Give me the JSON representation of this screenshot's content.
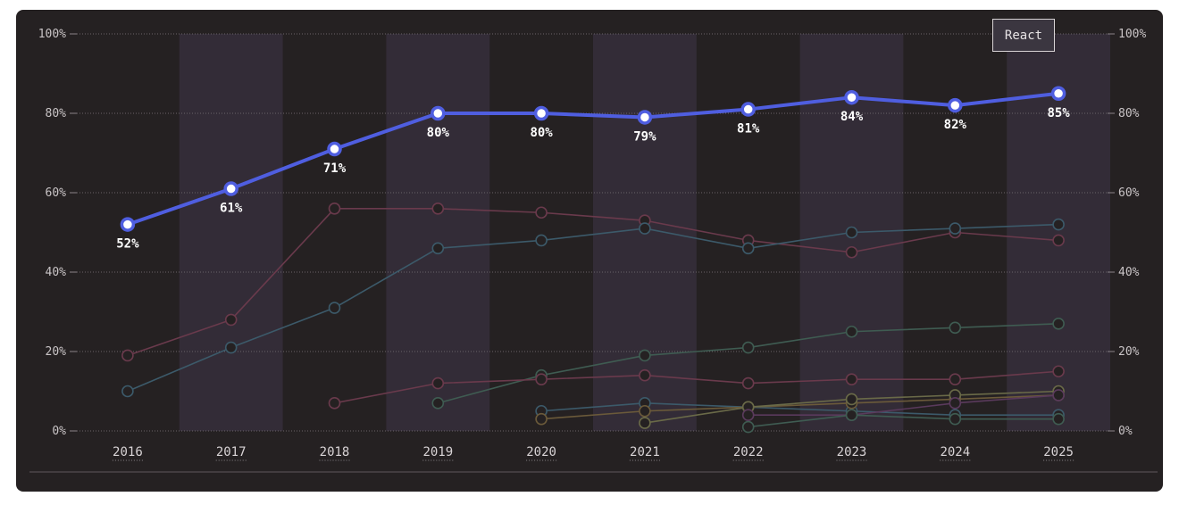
{
  "chart_data": {
    "type": "line",
    "legend": [
      "React"
    ],
    "x": [
      "2016",
      "2017",
      "2018",
      "2019",
      "2020",
      "2021",
      "2022",
      "2023",
      "2024",
      "2025"
    ],
    "ylim": [
      0,
      100
    ],
    "yticks": [
      "0%",
      "20%",
      "40%",
      "60%",
      "80%",
      "100%"
    ],
    "series": [
      {
        "name": "React",
        "highlight": true,
        "color": "#4f5ee0",
        "values": [
          52,
          61,
          71,
          80,
          80,
          79,
          81,
          84,
          82,
          85
        ],
        "labels": [
          "52%",
          "61%",
          "71%",
          "80%",
          "80%",
          "79%",
          "81%",
          "84%",
          "82%",
          "85%"
        ]
      },
      {
        "color": "#6a3a4c",
        "values": [
          19,
          28,
          56,
          56,
          55,
          53,
          48,
          45,
          50,
          48
        ]
      },
      {
        "color": "#3c5a6a",
        "values": [
          10,
          21,
          31,
          46,
          48,
          51,
          46,
          50,
          51,
          52
        ]
      },
      {
        "color": "#3f5c52",
        "values": [
          null,
          null,
          null,
          7,
          14,
          19,
          21,
          25,
          26,
          27
        ]
      },
      {
        "color": "#6a3a4c",
        "values": [
          null,
          null,
          7,
          12,
          13,
          14,
          12,
          13,
          13,
          15
        ]
      },
      {
        "color": "#3c5a6a",
        "values": [
          null,
          null,
          null,
          null,
          5,
          7,
          6,
          5,
          4,
          4
        ]
      },
      {
        "color": "#6b5a3a",
        "values": [
          null,
          null,
          null,
          null,
          3,
          5,
          6,
          7,
          8,
          9
        ]
      },
      {
        "color": "#6a6a48",
        "values": [
          null,
          null,
          null,
          null,
          null,
          2,
          6,
          8,
          9,
          10
        ]
      },
      {
        "color": "#5a3a5c",
        "values": [
          null,
          null,
          null,
          null,
          null,
          null,
          4,
          4,
          7,
          9
        ]
      },
      {
        "color": "#3f5c52",
        "values": [
          null,
          null,
          null,
          null,
          null,
          null,
          1,
          4,
          3,
          3
        ]
      }
    ]
  }
}
